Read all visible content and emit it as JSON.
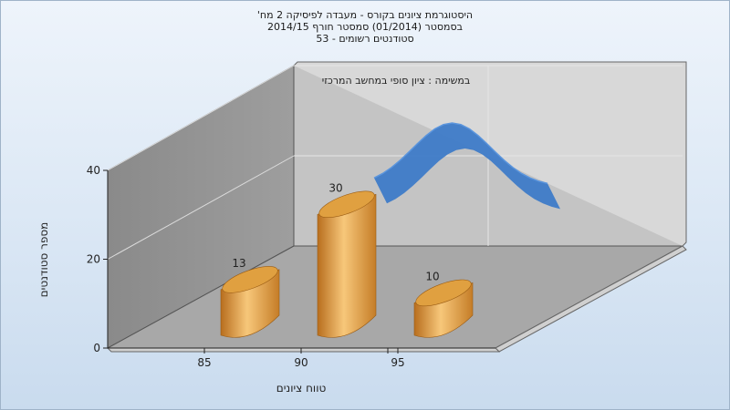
{
  "header": {
    "title_lines": [
      "היסטוגרמת ציונים בקורס - מעבדה לפיסיקה 2 מח'",
      "בסמסטר  (01/2014)  סמסטר חורף 2014/15",
      "סטודנטים רשומים - 53"
    ]
  },
  "colors": {
    "bar": "#e0a040",
    "curve": "#3a78c8",
    "back_wall": "#c4c4c4",
    "side_wall": "#8f8f8f",
    "floor": "#a8a8a8"
  },
  "chart_data": {
    "type": "bar",
    "title": "במשימה : ציון סופי במחשב המרכזי",
    "xlabel": "טווח ציונים",
    "ylabel": "מספר סטודנטים",
    "categories": [
      "85",
      "90",
      "95"
    ],
    "values": [
      13,
      30,
      10
    ],
    "ylim": [
      0,
      40
    ],
    "yticks": [
      0,
      20,
      40
    ],
    "grid": true,
    "has_curve": true
  }
}
